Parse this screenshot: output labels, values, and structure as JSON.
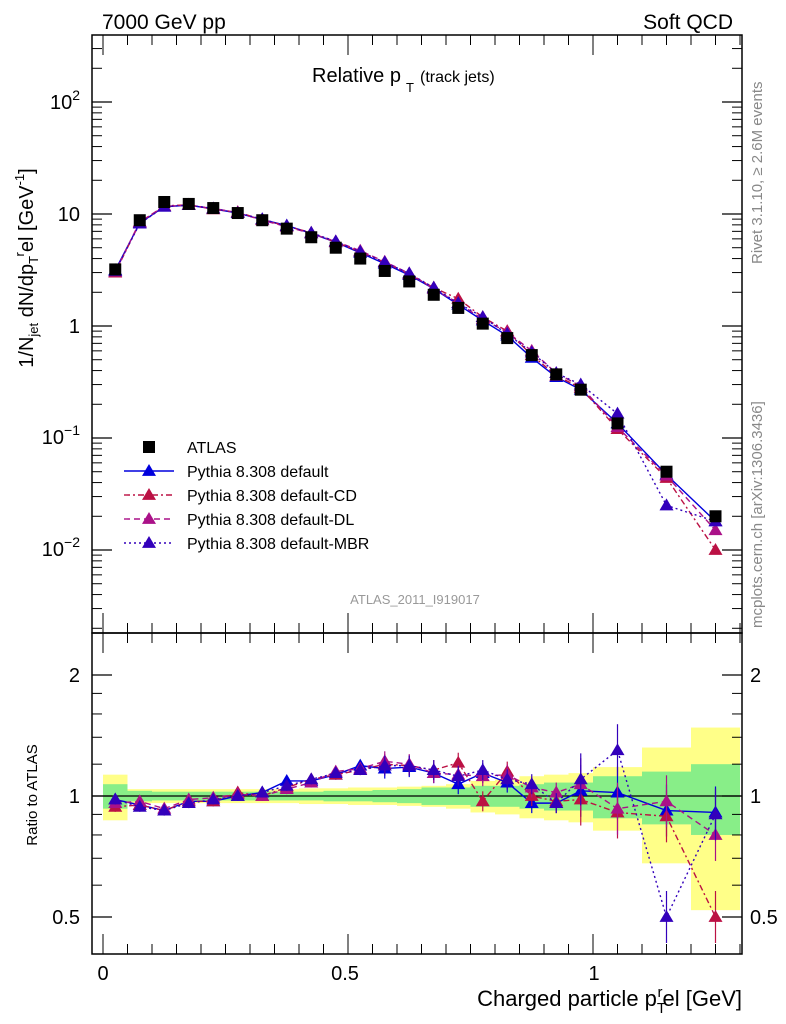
{
  "header": {
    "left": "7000 GeV pp",
    "right": "Soft QCD"
  },
  "plot_title": {
    "main": "Relative p",
    "sub": "T",
    "note": "(track jets)"
  },
  "y_title": "1/N_jet dN/dp_T^rel [GeV^-1]",
  "x_title": "Charged particle p_T^rel [GeV]",
  "ratio_ylabel": "Ratio to ATLAS",
  "analysis_label": "ATLAS_2011_I919017",
  "side_text_top": "Rivet 3.1.10, ≥ 2.6M events",
  "side_text_bottom": "mcplots.cern.ch [arXiv:1306.3436]",
  "legend": [
    {
      "label": "ATLAS"
    },
    {
      "label": "Pythia 8.308 default"
    },
    {
      "label": "Pythia 8.308 default-CD"
    },
    {
      "label": "Pythia 8.308 default-DL"
    },
    {
      "label": "Pythia 8.308 default-MBR"
    }
  ],
  "tick_labels": {
    "main_y": [
      "10^-2",
      "10^-1",
      "1",
      "10",
      "10^2"
    ],
    "ratio_y": [
      "0.5",
      "1",
      "2"
    ],
    "x": [
      "0",
      "0.5",
      "1"
    ]
  },
  "chart_data": [
    {
      "type": "scatter",
      "panel": "main",
      "yscale": "log",
      "xlim": [
        -0.05,
        1.3
      ],
      "ylim": [
        0.0015,
        400
      ],
      "title": "Relative p_T (track jets)",
      "x": [
        0.025,
        0.075,
        0.125,
        0.175,
        0.225,
        0.275,
        0.325,
        0.375,
        0.425,
        0.475,
        0.525,
        0.575,
        0.625,
        0.675,
        0.725,
        0.775,
        0.825,
        0.875,
        0.925,
        0.975,
        1.05,
        1.15,
        1.25
      ],
      "series": [
        {
          "name": "ATLAS",
          "color": "#000000",
          "marker": "square",
          "values": [
            3.2,
            8.8,
            12.8,
            12.3,
            11.3,
            10.2,
            8.8,
            7.4,
            6.2,
            5.0,
            4.0,
            3.1,
            2.5,
            1.9,
            1.45,
            1.05,
            0.78,
            0.55,
            0.37,
            0.27,
            0.135,
            0.05,
            0.02
          ]
        },
        {
          "name": "Pythia 8.308 default",
          "color": "#0000dd",
          "dash": "solid",
          "values": [
            3.15,
            8.3,
            11.6,
            12.0,
            11.1,
            10.2,
            8.9,
            7.9,
            6.7,
            5.6,
            4.5,
            3.6,
            2.85,
            2.15,
            1.55,
            1.12,
            0.82,
            0.52,
            0.35,
            0.27,
            0.135,
            0.047,
            0.018
          ]
        },
        {
          "name": "Pythia 8.308 default-CD",
          "color": "#bb1144",
          "dash": "6,3,2,3",
          "values": [
            3.0,
            8.4,
            11.8,
            12.1,
            11.0,
            10.4,
            8.9,
            7.8,
            6.8,
            5.6,
            4.6,
            3.7,
            2.9,
            2.2,
            1.75,
            1.2,
            0.9,
            0.55,
            0.36,
            0.28,
            0.12,
            0.044,
            0.01
          ]
        },
        {
          "name": "Pythia 8.308 default-DL",
          "color": "#aa1188",
          "dash": "6,4",
          "values": [
            3.05,
            8.5,
            11.7,
            12.0,
            11.2,
            10.3,
            8.8,
            7.7,
            6.7,
            5.7,
            4.7,
            3.75,
            2.95,
            2.15,
            1.6,
            1.15,
            0.88,
            0.6,
            0.38,
            0.29,
            0.125,
            0.046,
            0.015
          ]
        },
        {
          "name": "Pythia 8.308 default-MBR",
          "color": "#3300bb",
          "dash": "2,3",
          "values": [
            3.1,
            8.2,
            11.6,
            12.0,
            11.2,
            10.2,
            9.0,
            7.8,
            6.8,
            5.7,
            4.6,
            3.7,
            2.95,
            2.2,
            1.6,
            1.2,
            0.85,
            0.58,
            0.38,
            0.3,
            0.165,
            0.025,
            0.018
          ]
        }
      ]
    },
    {
      "type": "line",
      "panel": "ratio",
      "xlim": [
        -0.05,
        1.3
      ],
      "ylim": [
        0.42,
        2.35
      ],
      "ylabel": "Ratio to ATLAS",
      "xlabel": "Charged particle p_T^rel [GeV]",
      "bands": {
        "edges": [
          0.0,
          0.05,
          0.1,
          0.15,
          0.2,
          0.25,
          0.3,
          0.35,
          0.4,
          0.45,
          0.5,
          0.55,
          0.6,
          0.65,
          0.7,
          0.75,
          0.8,
          0.85,
          0.9,
          0.95,
          1.0,
          1.1,
          1.2,
          1.3
        ],
        "stat_color": "#88ee88",
        "sys_color": "#ffff88",
        "stat_lo": [
          0.93,
          0.97,
          0.975,
          0.975,
          0.975,
          0.975,
          0.975,
          0.975,
          0.975,
          0.97,
          0.97,
          0.965,
          0.96,
          0.95,
          0.95,
          0.94,
          0.94,
          0.93,
          0.92,
          0.92,
          0.88,
          0.85,
          0.8
        ],
        "stat_hi": [
          1.07,
          1.03,
          1.025,
          1.025,
          1.025,
          1.025,
          1.025,
          1.025,
          1.025,
          1.03,
          1.03,
          1.035,
          1.04,
          1.05,
          1.05,
          1.06,
          1.06,
          1.07,
          1.08,
          1.08,
          1.12,
          1.15,
          1.2
        ],
        "sys_lo": [
          0.87,
          0.96,
          0.96,
          0.96,
          0.96,
          0.96,
          0.96,
          0.96,
          0.955,
          0.955,
          0.95,
          0.95,
          0.945,
          0.94,
          0.93,
          0.91,
          0.9,
          0.88,
          0.87,
          0.86,
          0.82,
          0.68,
          0.52
        ],
        "sys_hi": [
          1.13,
          1.04,
          1.04,
          1.04,
          1.04,
          1.04,
          1.04,
          1.04,
          1.045,
          1.045,
          1.05,
          1.05,
          1.055,
          1.06,
          1.07,
          1.09,
          1.1,
          1.12,
          1.13,
          1.14,
          1.18,
          1.32,
          1.48
        ]
      },
      "x": [
        0.025,
        0.075,
        0.125,
        0.175,
        0.225,
        0.275,
        0.325,
        0.375,
        0.425,
        0.475,
        0.525,
        0.575,
        0.625,
        0.675,
        0.725,
        0.775,
        0.825,
        0.875,
        0.925,
        0.975,
        1.05,
        1.15,
        1.25
      ],
      "series": [
        {
          "name": "Pythia 8.308 default",
          "color": "#0000dd",
          "dash": "solid",
          "values": [
            0.98,
            0.95,
            0.92,
            0.97,
            0.97,
            1.0,
            1.02,
            1.09,
            1.09,
            1.13,
            1.19,
            1.17,
            1.18,
            1.14,
            1.07,
            1.14,
            1.08,
            0.96,
            0.96,
            1.03,
            1.02,
            0.92,
            0.91
          ]
        },
        {
          "name": "Pythia 8.308 default-CD",
          "color": "#bb1144",
          "dash": "6,3,2,3",
          "values": [
            0.94,
            0.95,
            0.92,
            0.97,
            0.97,
            1.02,
            1.0,
            1.05,
            1.1,
            1.13,
            1.16,
            1.2,
            1.19,
            1.16,
            1.21,
            0.97,
            1.15,
            1.0,
            0.97,
            0.98,
            0.91,
            0.89,
            0.5
          ]
        },
        {
          "name": "Pythia 8.308 default-DL",
          "color": "#aa1188",
          "dash": "6,4",
          "values": [
            0.96,
            0.97,
            0.93,
            0.98,
            0.99,
            1.01,
            1.0,
            1.04,
            1.08,
            1.15,
            1.17,
            1.22,
            1.2,
            1.14,
            1.13,
            1.12,
            1.13,
            1.05,
            1.02,
            1.07,
            0.93,
            0.97,
            0.8
          ]
        },
        {
          "name": "Pythia 8.308 default-MBR",
          "color": "#3300bb",
          "dash": "2,3",
          "values": [
            0.98,
            0.94,
            0.92,
            0.96,
            0.98,
            1.0,
            1.02,
            1.06,
            1.1,
            1.14,
            1.16,
            1.19,
            1.19,
            1.16,
            1.12,
            1.16,
            1.1,
            1.07,
            0.96,
            1.1,
            1.3,
            0.5,
            0.9
          ]
        }
      ]
    }
  ]
}
